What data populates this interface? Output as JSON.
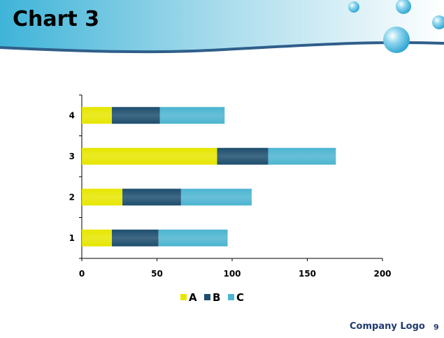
{
  "slide": {
    "title": "Chart 3",
    "footer_logo": "Company Logo",
    "page_number": "9"
  },
  "chart_data": {
    "type": "bar",
    "orientation": "horizontal",
    "stacked": true,
    "categories": [
      "1",
      "2",
      "3",
      "4"
    ],
    "series": [
      {
        "name": "A",
        "values": [
          20,
          27,
          90,
          20
        ],
        "color": "#e6e600"
      },
      {
        "name": "B",
        "values": [
          31,
          39,
          34,
          32
        ],
        "color": "#1e4e6e"
      },
      {
        "name": "C",
        "values": [
          46,
          47,
          45,
          43
        ],
        "color": "#4cb4d0"
      }
    ],
    "xlim": [
      0,
      200
    ],
    "xticks": [
      "0",
      "50",
      "100",
      "150",
      "200"
    ],
    "grid": false,
    "legend_position": "bottom"
  }
}
